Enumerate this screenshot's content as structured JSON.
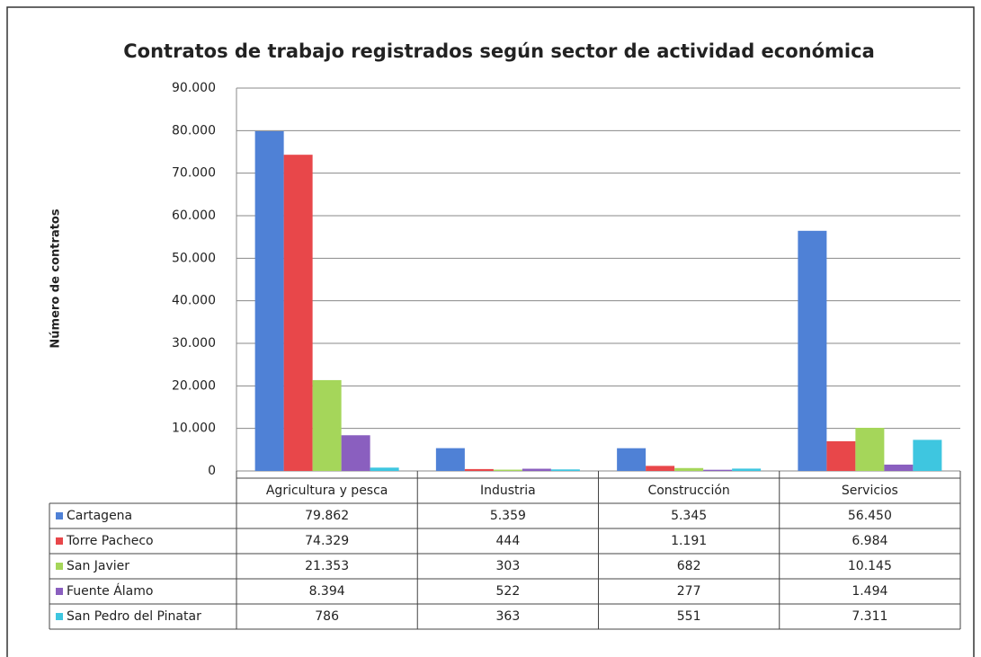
{
  "chart_data": {
    "type": "bar",
    "title": "Contratos de trabajo registrados según sector de actividad económica",
    "y_label": "Número de contratos",
    "categories": [
      "Agricultura y pesca",
      "Industria",
      "Construcción",
      "Servicios"
    ],
    "series": [
      {
        "name": "Cartagena",
        "color": "#4f81d6",
        "values": [
          79862,
          5359,
          5345,
          56450
        ],
        "value_labels": [
          "79.862",
          "5.359",
          "5.345",
          "56.450"
        ]
      },
      {
        "name": "Torre Pacheco",
        "color": "#e8474a",
        "values": [
          74329,
          444,
          1191,
          6984
        ],
        "value_labels": [
          "74.329",
          "444",
          "1.191",
          "6.984"
        ]
      },
      {
        "name": "San Javier",
        "color": "#a5d65a",
        "values": [
          21353,
          303,
          682,
          10145
        ],
        "value_labels": [
          "21.353",
          "303",
          "682",
          "10.145"
        ]
      },
      {
        "name": "Fuente Álamo",
        "color": "#8a5fbf",
        "values": [
          8394,
          522,
          277,
          1494
        ],
        "value_labels": [
          "8.394",
          "522",
          "277",
          "1.494"
        ]
      },
      {
        "name": "San Pedro del Pinatar",
        "color": "#3ec6e0",
        "values": [
          786,
          363,
          551,
          7311
        ],
        "value_labels": [
          "786",
          "363",
          "551",
          "7.311"
        ]
      }
    ],
    "ylim": [
      0,
      90000
    ],
    "yticks": [
      0,
      {
        "value": 10000,
        "label": "10.000"
      },
      {
        "value": 20000,
        "label": "20.000"
      },
      {
        "value": 30000,
        "label": "30.000"
      },
      {
        "value": 40000,
        "label": "40.000"
      },
      {
        "value": 50000,
        "label": "50.000"
      },
      {
        "value": 60000,
        "label": "60.000"
      },
      {
        "value": 70000,
        "label": "70.000"
      },
      {
        "value": 80000,
        "label": "80.000"
      },
      {
        "value": 90000,
        "label": "90.000"
      }
    ],
    "grid": true
  }
}
